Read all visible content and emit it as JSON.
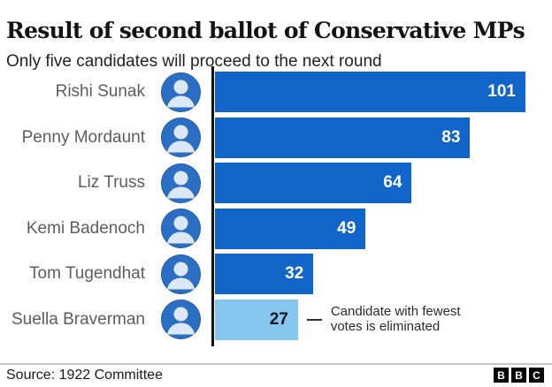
{
  "header": {
    "title": "Result of second ballot of Conservative MPs",
    "subtitle": "Only five candidates will proceed to the next round"
  },
  "chart_data": {
    "type": "bar",
    "orientation": "horizontal",
    "title": "Result of second ballot of Conservative MPs",
    "subtitle": "Only five candidates will proceed to the next round",
    "categories": [
      "Rishi Sunak",
      "Penny Mordaunt",
      "Liz Truss",
      "Kemi Badenoch",
      "Tom Tugendhat",
      "Suella Braverman"
    ],
    "values": [
      101,
      83,
      64,
      49,
      32,
      27
    ],
    "xlim": [
      0,
      101
    ],
    "grid": false,
    "legend": false,
    "bar_colors": [
      "#1165c8",
      "#1165c8",
      "#1165c8",
      "#1165c8",
      "#1165c8",
      "#85c7ee"
    ],
    "value_label_colors": [
      "#ffffff",
      "#ffffff",
      "#ffffff",
      "#ffffff",
      "#ffffff",
      "#14181c"
    ],
    "annotation": {
      "attached_to": "Suella Braverman",
      "row_index": 5,
      "lines": [
        "Candidate with fewest",
        "votes is eliminated"
      ]
    }
  },
  "colors": {
    "bar_blue": "#1165c8",
    "bar_light_blue": "#85c7ee",
    "axis": "#121212",
    "label_gray": "#5d5d5d"
  },
  "icons": {
    "avatar": "person-silhouette-icon"
  },
  "footer": {
    "source": "Source: 1922 Committee",
    "logo_letters": [
      "B",
      "B",
      "C"
    ]
  }
}
